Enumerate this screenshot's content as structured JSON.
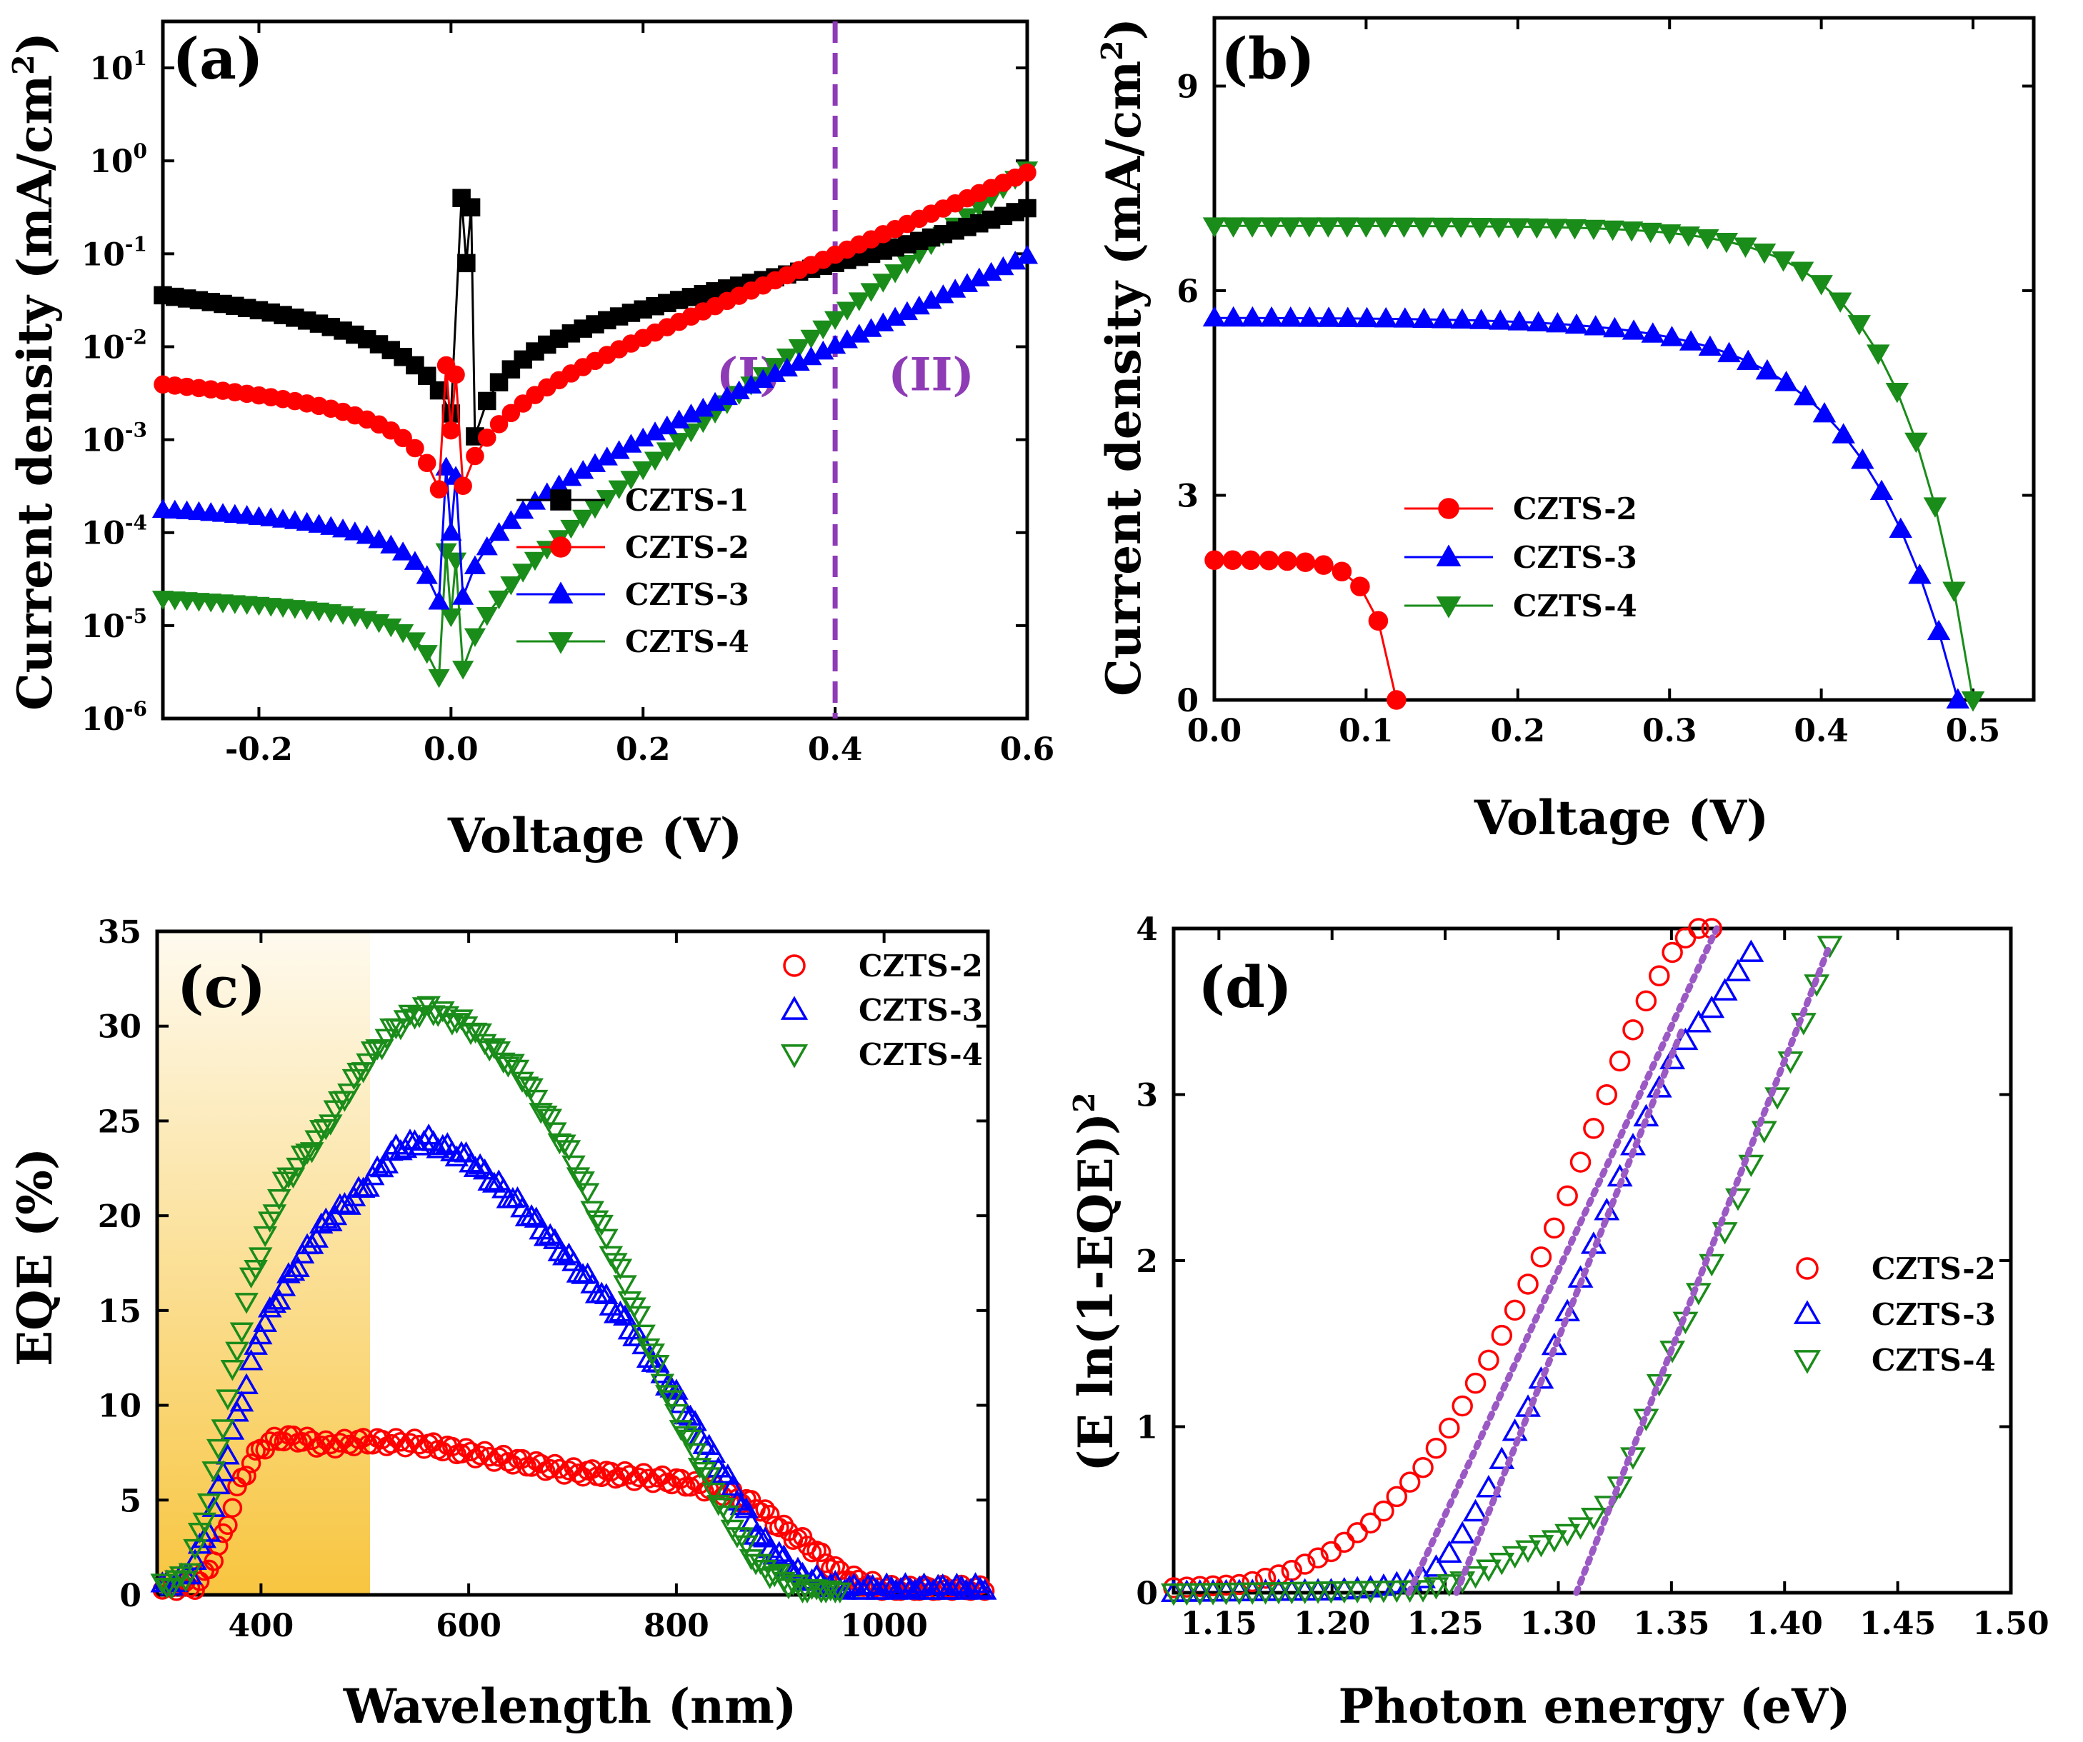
{
  "chart_data": [
    {
      "panel": "(a)",
      "type": "scatter",
      "yscale": "log",
      "xlabel": "Voltage (V)",
      "ylabel": "Current density (mA/cm",
      "ylabel_sup": "2",
      "ylabel_close": ")",
      "xlim": [
        -0.3,
        0.6
      ],
      "ylim_log10": [
        -6,
        1.5
      ],
      "xticks": [
        -0.2,
        0.0,
        0.2,
        0.4,
        0.6
      ],
      "xtick_labels": [
        "-0.2",
        "0.0",
        "0.2",
        "0.4",
        "0.6"
      ],
      "yticks_exp": [
        -6,
        -5,
        -4,
        -3,
        -2,
        -1,
        0,
        1
      ],
      "ytick_base": "10",
      "ytick_exps": [
        "-6",
        "-5",
        "-4",
        "-3",
        "-2",
        "-1",
        "0",
        "1"
      ],
      "vline": {
        "x": 0.4,
        "color": "#8e3bb6"
      },
      "regions": [
        {
          "label": "(I)",
          "x": 0.31,
          "y": -2.3
        },
        {
          "label": "(II)",
          "x": 0.5,
          "y": -2.3
        }
      ],
      "legend_position": "lower-center-right",
      "series": [
        {
          "name": "CZTS-1",
          "color": "#000000",
          "marker": "square",
          "filled": true,
          "V0": 0.016,
          "Jsat": 0.0011,
          "n": 4.2,
          "floor": 0.011,
          "Jmin_log": -1.1
        },
        {
          "name": "CZTS-2",
          "color": "#ff0000",
          "marker": "circle",
          "filled": true,
          "V0": 0.0,
          "Jsat": 0.0016,
          "n": 3.8,
          "floor": 0.0008,
          "Jmin_log": -2.9
        },
        {
          "name": "CZTS-3",
          "color": "#0000ff",
          "marker": "triangle-up",
          "filled": true,
          "V0": 0.0,
          "Jsat": 0.00012,
          "n": 3.5,
          "floor": 2e-05,
          "Jmin_log": -4.0
        },
        {
          "name": "CZTS-4",
          "color": "#1a8c1a",
          "marker": "triangle-down",
          "filled": true,
          "V0": 0.0,
          "Jsat": 1.2e-05,
          "n": 2.1,
          "floor": 2.5e-06,
          "Jmin_log": -4.9
        }
      ]
    },
    {
      "panel": "(b)",
      "type": "scatter",
      "xlabel": "Voltage (V)",
      "ylabel": "Current density (mA/cm",
      "ylabel_sup": "2",
      "ylabel_close": ")",
      "xlim": [
        0.0,
        0.54
      ],
      "ylim": [
        0,
        10
      ],
      "xticks": [
        0.0,
        0.1,
        0.2,
        0.3,
        0.4,
        0.5
      ],
      "xtick_labels": [
        "0.0",
        "0.1",
        "0.2",
        "0.3",
        "0.4",
        "0.5"
      ],
      "yticks": [
        0,
        3,
        6,
        9
      ],
      "ytick_labels": [
        "0",
        "3",
        "6",
        "9"
      ],
      "legend_position": "lower-left",
      "series": [
        {
          "name": "CZTS-2",
          "color": "#ff0000",
          "marker": "circle",
          "filled": true,
          "Jsc": 2.05,
          "Voc": 0.12,
          "k": 0.12
        },
        {
          "name": "CZTS-3",
          "color": "#0000ff",
          "marker": "triangle-up",
          "filled": true,
          "Jsc": 5.6,
          "Voc": 0.49,
          "k": 0.13
        },
        {
          "name": "CZTS-4",
          "color": "#1a8c1a",
          "marker": "triangle-down",
          "filled": true,
          "Jsc": 6.95,
          "Voc": 0.5,
          "k": 0.095
        }
      ]
    },
    {
      "panel": "(c)",
      "type": "scatter",
      "xlabel": "Wavelength (nm)",
      "ylabel": "EQE (%)",
      "xlim": [
        300,
        1100
      ],
      "ylim": [
        0,
        35
      ],
      "xticks": [
        400,
        600,
        800,
        1000
      ],
      "xtick_labels": [
        "400",
        "600",
        "800",
        "1000"
      ],
      "yticks": [
        0,
        5,
        10,
        15,
        20,
        25,
        30,
        35
      ],
      "ytick_labels": [
        "0",
        "5",
        "10",
        "15",
        "20",
        "25",
        "30",
        "35"
      ],
      "shaded_band": {
        "from": 300,
        "to": 505,
        "color": "#f7c235"
      },
      "legend_position": "top-right",
      "series": [
        {
          "name": "CZTS-2",
          "color": "#ff0000",
          "marker": "circle",
          "filled": false,
          "x": [
            300,
            340,
            360,
            380,
            400,
            420,
            440,
            460,
            500,
            550,
            600,
            650,
            700,
            750,
            800,
            850,
            880,
            900,
            930,
            960,
            1000,
            1100
          ],
          "y": [
            0.3,
            0.5,
            2.5,
            6.0,
            7.8,
            8.3,
            8.2,
            7.9,
            8.1,
            8.0,
            7.5,
            7.0,
            6.5,
            6.3,
            6.0,
            5.4,
            4.6,
            3.6,
            2.5,
            1.0,
            0.3,
            0.3
          ]
        },
        {
          "name": "CZTS-3",
          "color": "#0000ff",
          "marker": "triangle-up",
          "filled": false,
          "x": [
            300,
            330,
            350,
            370,
            400,
            430,
            460,
            500,
            530,
            560,
            600,
            650,
            700,
            750,
            800,
            850,
            880,
            920,
            960,
            1000,
            1100
          ],
          "y": [
            0.3,
            1.0,
            3.5,
            8.0,
            14.0,
            17.0,
            19.5,
            21.5,
            23.5,
            24.0,
            23.0,
            20.5,
            17.5,
            14.5,
            10.5,
            6.0,
            3.0,
            1.0,
            0.3,
            0.3,
            0.3
          ]
        },
        {
          "name": "CZTS-4",
          "color": "#1a8c1a",
          "marker": "triangle-down",
          "filled": false,
          "x": [
            300,
            330,
            350,
            370,
            390,
            420,
            460,
            500,
            530,
            560,
            600,
            650,
            700,
            750,
            800,
            850,
            880,
            920,
            960
          ],
          "y": [
            0.3,
            1.0,
            5.0,
            11.0,
            16.5,
            21.5,
            24.5,
            28.0,
            30.0,
            31.0,
            30.0,
            27.5,
            23.0,
            16.5,
            9.5,
            4.0,
            1.5,
            0.3,
            0.0
          ]
        }
      ]
    },
    {
      "panel": "(d)",
      "type": "scatter",
      "xlabel": "Photon energy (eV)",
      "ylabel": "(E ln(1-EQE))",
      "ylabel_sup": "2",
      "xlim": [
        1.13,
        1.5
      ],
      "ylim": [
        0,
        4
      ],
      "xticks": [
        1.15,
        1.2,
        1.25,
        1.3,
        1.35,
        1.4,
        1.45,
        1.5
      ],
      "xtick_labels": [
        "1.15",
        "1.20",
        "1.25",
        "1.30",
        "1.35",
        "1.40",
        "1.45",
        "1.50"
      ],
      "yticks": [
        0,
        1,
        2,
        3,
        4
      ],
      "ytick_labels": [
        "0",
        "1",
        "2",
        "3",
        "4"
      ],
      "fit_color": "#9b59c4",
      "legend_position": "center-right",
      "series": [
        {
          "name": "CZTS-2",
          "color": "#ff0000",
          "marker": "circle",
          "filled": false,
          "x": [
            1.13,
            1.16,
            1.18,
            1.2,
            1.22,
            1.24,
            1.25,
            1.26,
            1.27,
            1.28,
            1.29,
            1.3,
            1.31,
            1.32,
            1.33,
            1.34,
            1.35,
            1.36,
            1.37
          ],
          "y": [
            0.03,
            0.05,
            0.12,
            0.25,
            0.45,
            0.75,
            0.95,
            1.18,
            1.42,
            1.68,
            1.95,
            2.25,
            2.6,
            2.95,
            3.3,
            3.6,
            3.85,
            4.0,
            4.0
          ],
          "fit": {
            "x": [
              1.234,
              1.37
            ],
            "y": [
              0.0,
              4.0
            ]
          }
        },
        {
          "name": "CZTS-3",
          "color": "#0000ff",
          "marker": "triangle-up",
          "filled": false,
          "x": [
            1.13,
            1.2,
            1.22,
            1.24,
            1.25,
            1.26,
            1.27,
            1.28,
            1.29,
            1.3,
            1.31,
            1.32,
            1.33,
            1.34,
            1.35,
            1.36,
            1.37,
            1.38,
            1.39
          ],
          "y": [
            0.0,
            0.01,
            0.03,
            0.08,
            0.2,
            0.4,
            0.65,
            0.95,
            1.2,
            1.55,
            1.9,
            2.25,
            2.6,
            2.9,
            3.2,
            3.4,
            3.55,
            3.75,
            3.95
          ],
          "fit": {
            "x": [
              1.255,
              1.355
            ],
            "y": [
              0.0,
              3.4
            ]
          }
        },
        {
          "name": "CZTS-4",
          "color": "#1a8c1a",
          "marker": "triangle-down",
          "filled": false,
          "x": [
            1.13,
            1.24,
            1.26,
            1.27,
            1.28,
            1.29,
            1.3,
            1.31,
            1.32,
            1.33,
            1.34,
            1.35,
            1.36,
            1.37,
            1.38,
            1.39,
            1.4,
            1.41,
            1.42
          ],
          "y": [
            0.0,
            0.02,
            0.08,
            0.15,
            0.22,
            0.28,
            0.33,
            0.4,
            0.5,
            0.7,
            1.1,
            1.45,
            1.75,
            2.05,
            2.4,
            2.75,
            3.1,
            3.5,
            3.9
          ],
          "fit": {
            "x": [
              1.308,
              1.42
            ],
            "y": [
              0.0,
              3.9
            ]
          }
        }
      ]
    }
  ]
}
